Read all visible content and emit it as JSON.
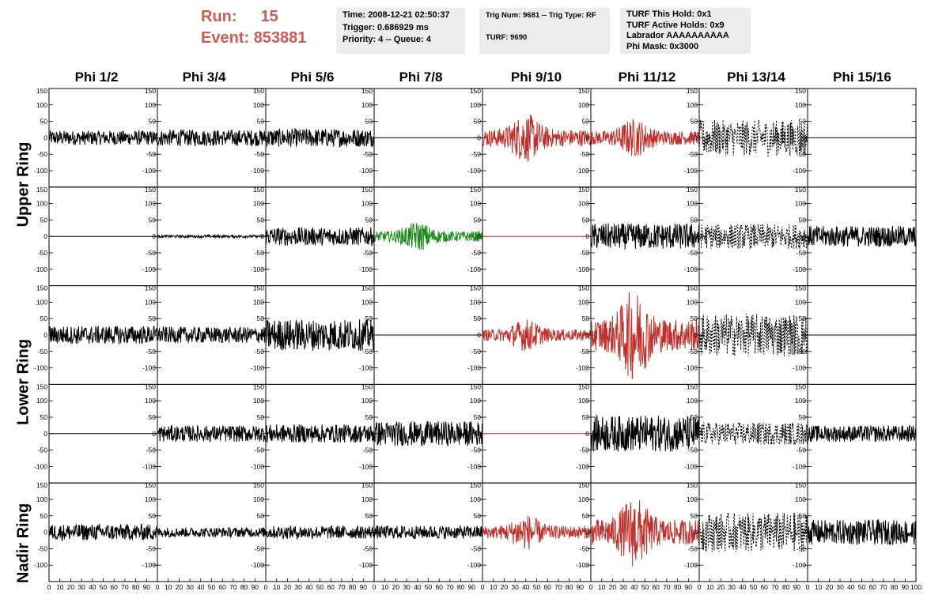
{
  "header": {
    "run_label": "Run:",
    "run_value": "15",
    "event_label": "Event:",
    "event_value": "853881"
  },
  "info_boxes": [
    {
      "lines": [
        "Time: 2008-12-21 02:50:37",
        "Trigger: 0.686929 ms",
        "Priority: 4 -- Queue: 4"
      ]
    },
    {
      "lines": [
        "Trig Num: 9681 -- Trig Type: RF",
        "",
        "TURF: 9690"
      ]
    },
    {
      "lines": [
        "TURF This Hold: 0x1",
        "TURF Active Holds: 0x9",
        "Labrador AAAAAAAAAA",
        "Phi Mask: 0x3000"
      ]
    }
  ],
  "columns": [
    "Phi 1/2",
    "Phi 3/4",
    "Phi 5/6",
    "Phi 7/8",
    "Phi 9/10",
    "Phi 11/12",
    "Phi 13/14",
    "Phi 15/16"
  ],
  "rows": [
    "Upper Ring",
    "Lower Ring",
    "Nadir Ring"
  ],
  "colors": {
    "black": "#000000",
    "red": "#c0302a",
    "green": "#1e8c1e",
    "title_red": "#d05a52",
    "box_bg": "#ececec"
  },
  "chart_data": {
    "type": "line",
    "description_units": "waveform amplitude vs sample index",
    "x_range": [
      0,
      100
    ],
    "x_ticks": [
      "0",
      "10",
      "20",
      "30",
      "40",
      "50",
      "60",
      "70",
      "80",
      "90",
      "100"
    ],
    "y_range": [
      -150,
      150
    ],
    "y_ticks": [
      "150",
      "100",
      "50",
      "0",
      "-50",
      "-100",
      "-150"
    ],
    "subrows": 5,
    "panels_note": "rows 0-1 Upper Ring, rows 2-3 Lower Ring, row 4 Nadir Ring",
    "panels": [
      [
        {
          "color": "black",
          "style": "solid",
          "amp": 22,
          "env": "flat"
        },
        {
          "color": "black",
          "style": "solid",
          "amp": 25,
          "env": "flat"
        },
        {
          "color": "black",
          "style": "solid",
          "amp": 28,
          "env": "flat"
        },
        {
          "color": "black",
          "style": "solid",
          "amp": 0,
          "env": "flat"
        },
        {
          "color": "red",
          "style": "solid",
          "amp": 75,
          "env": "pulse"
        },
        {
          "color": "red",
          "style": "solid",
          "amp": 60,
          "env": "pulse"
        },
        {
          "color": "black",
          "style": "dashed",
          "amp": 55,
          "env": "flat"
        },
        {
          "color": "black",
          "style": "solid",
          "amp": 0,
          "env": "flat"
        }
      ],
      [
        {
          "color": "black",
          "style": "solid",
          "amp": 0,
          "env": "flat"
        },
        {
          "color": "black",
          "style": "solid",
          "amp": 4,
          "env": "flat"
        },
        {
          "color": "black",
          "style": "solid",
          "amp": 28,
          "env": "flat"
        },
        {
          "color": "green",
          "style": "solid",
          "amp": 45,
          "env": "pulse"
        },
        {
          "color": "red",
          "style": "solid",
          "amp": 0,
          "env": "flat"
        },
        {
          "color": "black",
          "style": "solid",
          "amp": 40,
          "env": "flat"
        },
        {
          "color": "black",
          "style": "dashed",
          "amp": 38,
          "env": "flat"
        },
        {
          "color": "black",
          "style": "solid",
          "amp": 32,
          "env": "flat"
        }
      ],
      [
        {
          "color": "black",
          "style": "solid",
          "amp": 28,
          "env": "flat"
        },
        {
          "color": "black",
          "style": "solid",
          "amp": 25,
          "env": "flat"
        },
        {
          "color": "black",
          "style": "solid",
          "amp": 48,
          "env": "flat"
        },
        {
          "color": "black",
          "style": "solid",
          "amp": 0,
          "env": "flat"
        },
        {
          "color": "red",
          "style": "solid",
          "amp": 50,
          "env": "pulse"
        },
        {
          "color": "red",
          "style": "solid",
          "amp": 140,
          "env": "pulse"
        },
        {
          "color": "black",
          "style": "dashed",
          "amp": 65,
          "env": "flat"
        },
        {
          "color": "black",
          "style": "solid",
          "amp": 0,
          "env": "flat"
        }
      ],
      [
        {
          "color": "black",
          "style": "solid",
          "amp": 0,
          "env": "flat"
        },
        {
          "color": "black",
          "style": "solid",
          "amp": 25,
          "env": "flat"
        },
        {
          "color": "black",
          "style": "solid",
          "amp": 28,
          "env": "flat"
        },
        {
          "color": "black",
          "style": "solid",
          "amp": 38,
          "env": "flat"
        },
        {
          "color": "red",
          "style": "solid",
          "amp": 0,
          "env": "flat"
        },
        {
          "color": "black",
          "style": "solid",
          "amp": 55,
          "env": "flat"
        },
        {
          "color": "black",
          "style": "dashed",
          "amp": 35,
          "env": "flat"
        },
        {
          "color": "black",
          "style": "solid",
          "amp": 25,
          "env": "flat"
        }
      ],
      [
        {
          "color": "black",
          "style": "solid",
          "amp": 25,
          "env": "flat"
        },
        {
          "color": "black",
          "style": "solid",
          "amp": 15,
          "env": "flat"
        },
        {
          "color": "black",
          "style": "solid",
          "amp": 20,
          "env": "flat"
        },
        {
          "color": "black",
          "style": "solid",
          "amp": 20,
          "env": "flat"
        },
        {
          "color": "red",
          "style": "solid",
          "amp": 55,
          "env": "pulse"
        },
        {
          "color": "red",
          "style": "solid",
          "amp": 110,
          "env": "pulse"
        },
        {
          "color": "black",
          "style": "dashed",
          "amp": 60,
          "env": "flat"
        },
        {
          "color": "black",
          "style": "solid",
          "amp": 38,
          "env": "flat"
        }
      ]
    ]
  }
}
